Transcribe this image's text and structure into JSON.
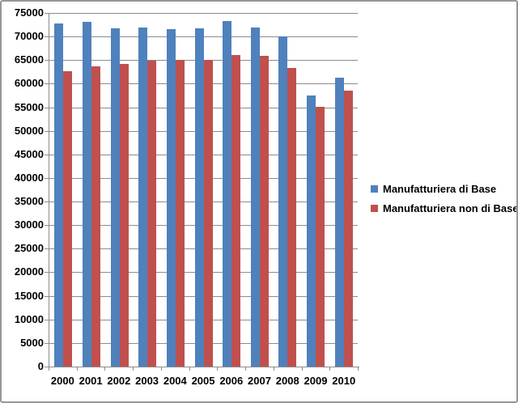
{
  "chart_data": {
    "type": "bar",
    "title": "",
    "xlabel": "",
    "ylabel": "",
    "categories": [
      "2000",
      "2001",
      "2002",
      "2003",
      "2004",
      "2005",
      "2006",
      "2007",
      "2008",
      "2009",
      "2010"
    ],
    "series": [
      {
        "name": "Manufatturiera di Base",
        "color": "#4F81BD",
        "values": [
          72700,
          73100,
          71800,
          71900,
          71600,
          71800,
          73300,
          71900,
          70100,
          57500,
          61300
        ]
      },
      {
        "name": "Manufatturiera non di Base",
        "color": "#C0504D",
        "values": [
          62600,
          63600,
          64200,
          64900,
          65000,
          65100,
          66100,
          65900,
          63300,
          55100,
          58600
        ]
      }
    ],
    "ylim": [
      0,
      75000
    ],
    "ytick_step": 5000,
    "yticks": [
      0,
      5000,
      10000,
      15000,
      20000,
      25000,
      30000,
      35000,
      40000,
      45000,
      50000,
      55000,
      60000,
      65000,
      70000,
      75000
    ],
    "grid": true,
    "legend_position": "right",
    "colors": {
      "gridline": "#8C8C8C",
      "axis": "#8C8C8C",
      "tick": "#8C8C8C",
      "text": "#000000",
      "frame_border": "#979797",
      "background": "#FFFFFF"
    }
  }
}
